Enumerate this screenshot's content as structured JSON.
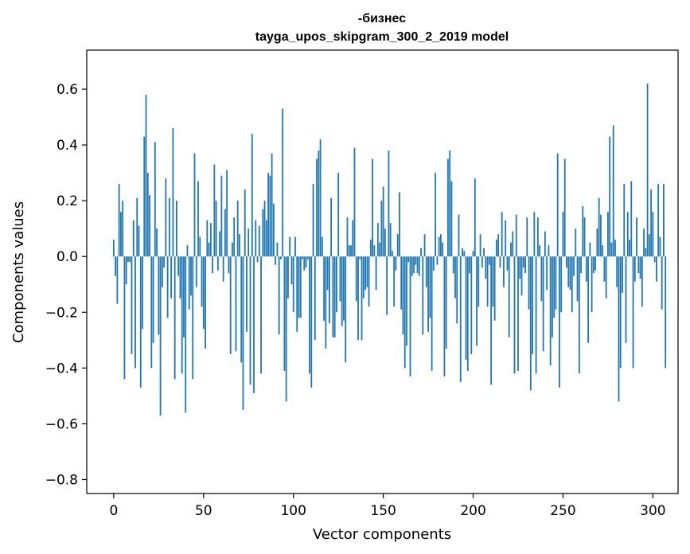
{
  "chart_data": {
    "type": "bar",
    "title_line1": "-бизнес",
    "title_line2": "tayga_upos_skipgram_300_2_2019 model",
    "xlabel": "Vector components",
    "ylabel": "Components values",
    "xlim": [
      -15,
      314
    ],
    "ylim": [
      -0.85,
      0.74
    ],
    "xticks": [
      0,
      50,
      100,
      150,
      200,
      250,
      300
    ],
    "xtick_labels": [
      "0",
      "50",
      "100",
      "150",
      "200",
      "250",
      "300"
    ],
    "yticks": [
      -0.8,
      -0.6,
      -0.4,
      -0.2,
      0.0,
      0.2,
      0.4,
      0.6
    ],
    "ytick_labels": [
      "−0.8",
      "−0.6",
      "−0.4",
      "−0.2",
      "0.0",
      "0.2",
      "0.4",
      "0.6"
    ],
    "bar_color": "#1f77b4",
    "bar_width": 0.8,
    "values": [
      0.06,
      -0.07,
      -0.17,
      0.26,
      0.16,
      0.2,
      -0.44,
      -0.1,
      -0.02,
      -0.02,
      -0.35,
      0.13,
      -0.4,
      0.21,
      0.11,
      -0.47,
      -0.26,
      0.43,
      0.58,
      0.3,
      0.22,
      -0.4,
      -0.31,
      0.41,
      0.1,
      -0.28,
      -0.57,
      -0.11,
      -0.04,
      0.28,
      -0.22,
      0.21,
      -0.15,
      0.46,
      -0.44,
      0.2,
      -0.07,
      -0.15,
      -0.42,
      -0.29,
      -0.56,
      0.04,
      -0.19,
      -0.14,
      -0.44,
      0.37,
      -0.11,
      0.27,
      0.07,
      -0.18,
      -0.26,
      -0.33,
      0.13,
      0.05,
      0.12,
      -0.06,
      0.33,
      0.2,
      -0.05,
      0.09,
      0.29,
      -0.09,
      0.17,
      0.31,
      -0.06,
      -0.35,
      0.05,
      0.14,
      -0.34,
      0.2,
      0.08,
      -0.38,
      -0.55,
      0.24,
      -0.27,
      0.1,
      -0.46,
      0.44,
      -0.49,
      0.13,
      -0.02,
      0.11,
      -0.42,
      0.17,
      0.2,
      0.13,
      0.3,
      0.29,
      0.37,
      0.19,
      -0.03,
      0.05,
      -0.28,
      -0.01,
      0.53,
      -0.41,
      -0.52,
      -0.15,
      0.07,
      -0.1,
      -0.2,
      0.07,
      -0.27,
      -0.22,
      -0.22,
      -0.01,
      -0.05,
      -0.04,
      -0.01,
      -0.42,
      -0.47,
      0.26,
      -0.3,
      0.35,
      0.38,
      0.42,
      0.07,
      -0.23,
      -0.33,
      -0.12,
      -0.24,
      0.21,
      -0.29,
      -0.29,
      -0.2,
      0.3,
      -0.16,
      -0.25,
      -0.23,
      -0.38,
      0.14,
      0.04,
      0.04,
      0.13,
      0.39,
      -0.16,
      -0.3,
      -0.01,
      -0.3,
      -0.15,
      -0.12,
      -0.11,
      -0.18,
      0.06,
      0.35,
      0.04,
      -0.12,
      0.12,
      0.05,
      0.2,
      0.25,
      0.1,
      -0.21,
      0.38,
      0.12,
      0.02,
      -0.18,
      -0.05,
      0.08,
      0.23,
      -0.19,
      -0.28,
      -0.4,
      -0.32,
      -0.02,
      -0.43,
      -0.07,
      -0.06,
      -0.03,
      -0.06,
      -0.07,
      0.03,
      -0.28,
      0.08,
      -0.11,
      -0.27,
      -0.22,
      -0.41,
      -0.05,
      0.3,
      -0.03,
      0.07,
      0.08,
      0.05,
      -0.43,
      -0.33,
      0.35,
      0.38,
      0.27,
      -0.06,
      -0.15,
      -0.24,
      0.15,
      -0.45,
      0.03,
      0.02,
      -0.37,
      -0.41,
      -0.06,
      -0.35,
      0.02,
      0.28,
      -0.32,
      -0.18,
      0.08,
      -0.04,
      0.03,
      -0.08,
      -0.18,
      -0.03,
      -0.46,
      -0.18,
      -0.23,
      0.06,
      0.08,
      -0.04,
      0.16,
      -0.11,
      0.13,
      -0.05,
      -0.29,
      0.05,
      0.09,
      -0.42,
      0.15,
      -0.41,
      -0.08,
      -0.14,
      -0.04,
      -0.06,
      0.14,
      -0.19,
      -0.48,
      -0.35,
      0.16,
      -0.42,
      0.14,
      0.04,
      -0.16,
      -0.34,
      0.09,
      -0.12,
      0.04,
      -0.39,
      -0.29,
      -0.22,
      -0.19,
      0.37,
      -0.47,
      -0.2,
      0.16,
      0.35,
      -0.04,
      -0.11,
      -0.12,
      -0.2,
      -0.07,
      0.1,
      -0.16,
      -0.42,
      -0.06,
      0.18,
      0.14,
      -0.09,
      -0.31,
      0.05,
      -0.2,
      -0.06,
      -0.05,
      0.1,
      0.21,
      0.15,
      0.04,
      -0.09,
      -0.15,
      0.16,
      0.43,
      0.05,
      0.47,
      0.06,
      -0.11,
      -0.52,
      -0.4,
      -0.13,
      0.26,
      -0.31,
      0.16,
      0.06,
      0.27,
      -0.4,
      -0.09,
      0.14,
      -0.06,
      -0.08,
      -0.18,
      0.1,
      0.03,
      0.62,
      0.08,
      0.24,
      0.16,
      -0.02,
      -0.09,
      0.26,
      0.07,
      -0.19,
      0.26,
      -0.4
    ]
  }
}
